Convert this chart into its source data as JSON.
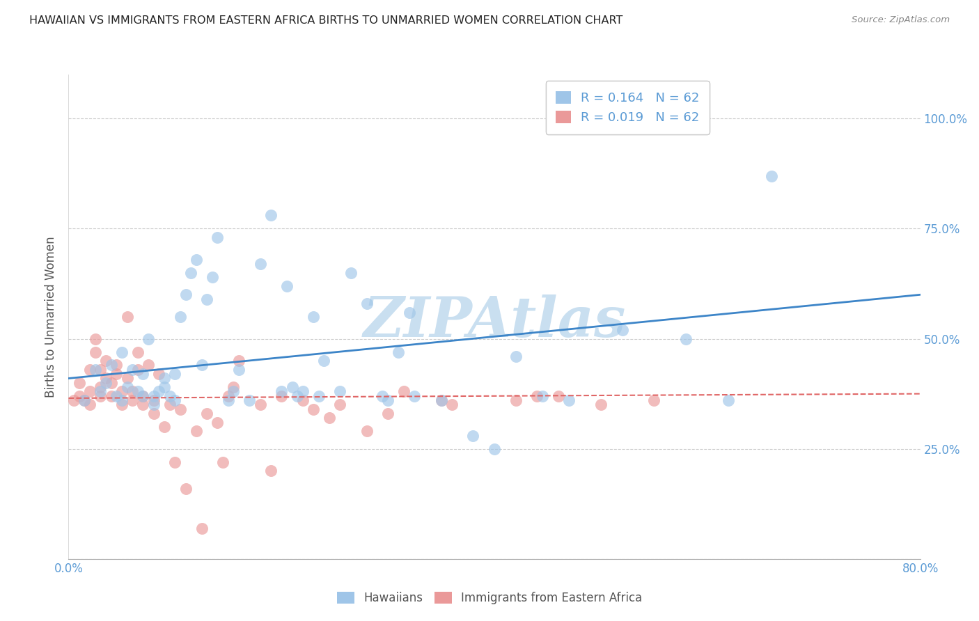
{
  "title": "HAWAIIAN VS IMMIGRANTS FROM EASTERN AFRICA BIRTHS TO UNMARRIED WOMEN CORRELATION CHART",
  "source": "Source: ZipAtlas.com",
  "ylabel": "Births to Unmarried Women",
  "xlim": [
    0.0,
    0.8
  ],
  "ylim": [
    0.0,
    1.1
  ],
  "yticks": [
    0.0,
    0.25,
    0.5,
    0.75,
    1.0
  ],
  "ytick_labels": [
    "",
    "25.0%",
    "50.0%",
    "75.0%",
    "100.0%"
  ],
  "xtick_positions": [
    0.0,
    0.1,
    0.2,
    0.3,
    0.4,
    0.5,
    0.6,
    0.7,
    0.8
  ],
  "xtick_labels": [
    "0.0%",
    "",
    "",
    "",
    "",
    "",
    "",
    "",
    "80.0%"
  ],
  "legend_r_blue": "R = 0.164",
  "legend_n_blue": "N = 62",
  "legend_r_pink": "R = 0.019",
  "legend_n_pink": "N = 62",
  "blue_color": "#9fc5e8",
  "pink_color": "#ea9999",
  "trend_blue_color": "#3d85c8",
  "trend_pink_color": "#e06666",
  "watermark_color": "#c9dff0",
  "blue_label": "Hawaiians",
  "pink_label": "Immigrants from Eastern Africa",
  "blue_trend_x0": 0.0,
  "blue_trend_y0": 0.41,
  "blue_trend_x1": 0.8,
  "blue_trend_y1": 0.6,
  "pink_trend_x0": 0.0,
  "pink_trend_y0": 0.365,
  "pink_trend_x1": 0.8,
  "pink_trend_y1": 0.375,
  "blue_x": [
    0.015,
    0.025,
    0.03,
    0.035,
    0.04,
    0.045,
    0.05,
    0.05,
    0.055,
    0.06,
    0.065,
    0.07,
    0.07,
    0.075,
    0.08,
    0.08,
    0.085,
    0.09,
    0.09,
    0.095,
    0.1,
    0.1,
    0.105,
    0.11,
    0.115,
    0.12,
    0.125,
    0.13,
    0.135,
    0.14,
    0.15,
    0.155,
    0.16,
    0.17,
    0.18,
    0.19,
    0.2,
    0.205,
    0.21,
    0.215,
    0.22,
    0.23,
    0.235,
    0.24,
    0.255,
    0.265,
    0.28,
    0.295,
    0.3,
    0.31,
    0.32,
    0.325,
    0.35,
    0.38,
    0.4,
    0.42,
    0.445,
    0.47,
    0.52,
    0.58,
    0.62,
    0.66
  ],
  "blue_y": [
    0.36,
    0.43,
    0.38,
    0.4,
    0.44,
    0.37,
    0.36,
    0.47,
    0.39,
    0.43,
    0.38,
    0.37,
    0.42,
    0.5,
    0.35,
    0.37,
    0.38,
    0.39,
    0.41,
    0.37,
    0.36,
    0.42,
    0.55,
    0.6,
    0.65,
    0.68,
    0.44,
    0.59,
    0.64,
    0.73,
    0.36,
    0.38,
    0.43,
    0.36,
    0.67,
    0.78,
    0.38,
    0.62,
    0.39,
    0.37,
    0.38,
    0.55,
    0.37,
    0.45,
    0.38,
    0.65,
    0.58,
    0.37,
    0.36,
    0.47,
    0.56,
    0.37,
    0.36,
    0.28,
    0.25,
    0.46,
    0.37,
    0.36,
    0.52,
    0.5,
    0.36,
    0.87
  ],
  "pink_x": [
    0.005,
    0.01,
    0.01,
    0.015,
    0.02,
    0.02,
    0.02,
    0.025,
    0.025,
    0.03,
    0.03,
    0.03,
    0.035,
    0.035,
    0.04,
    0.04,
    0.045,
    0.045,
    0.05,
    0.05,
    0.055,
    0.055,
    0.06,
    0.06,
    0.065,
    0.065,
    0.07,
    0.07,
    0.075,
    0.08,
    0.08,
    0.085,
    0.09,
    0.095,
    0.1,
    0.105,
    0.11,
    0.12,
    0.125,
    0.13,
    0.14,
    0.145,
    0.15,
    0.155,
    0.16,
    0.18,
    0.19,
    0.2,
    0.22,
    0.23,
    0.245,
    0.255,
    0.28,
    0.3,
    0.315,
    0.35,
    0.36,
    0.42,
    0.44,
    0.46,
    0.5,
    0.55
  ],
  "pink_y": [
    0.36,
    0.37,
    0.4,
    0.36,
    0.35,
    0.38,
    0.43,
    0.47,
    0.5,
    0.37,
    0.39,
    0.43,
    0.41,
    0.45,
    0.37,
    0.4,
    0.42,
    0.44,
    0.35,
    0.38,
    0.41,
    0.55,
    0.36,
    0.38,
    0.43,
    0.47,
    0.35,
    0.37,
    0.44,
    0.33,
    0.36,
    0.42,
    0.3,
    0.35,
    0.22,
    0.34,
    0.16,
    0.29,
    0.07,
    0.33,
    0.31,
    0.22,
    0.37,
    0.39,
    0.45,
    0.35,
    0.2,
    0.37,
    0.36,
    0.34,
    0.32,
    0.35,
    0.29,
    0.33,
    0.38,
    0.36,
    0.35,
    0.36,
    0.37,
    0.37,
    0.35,
    0.36
  ]
}
